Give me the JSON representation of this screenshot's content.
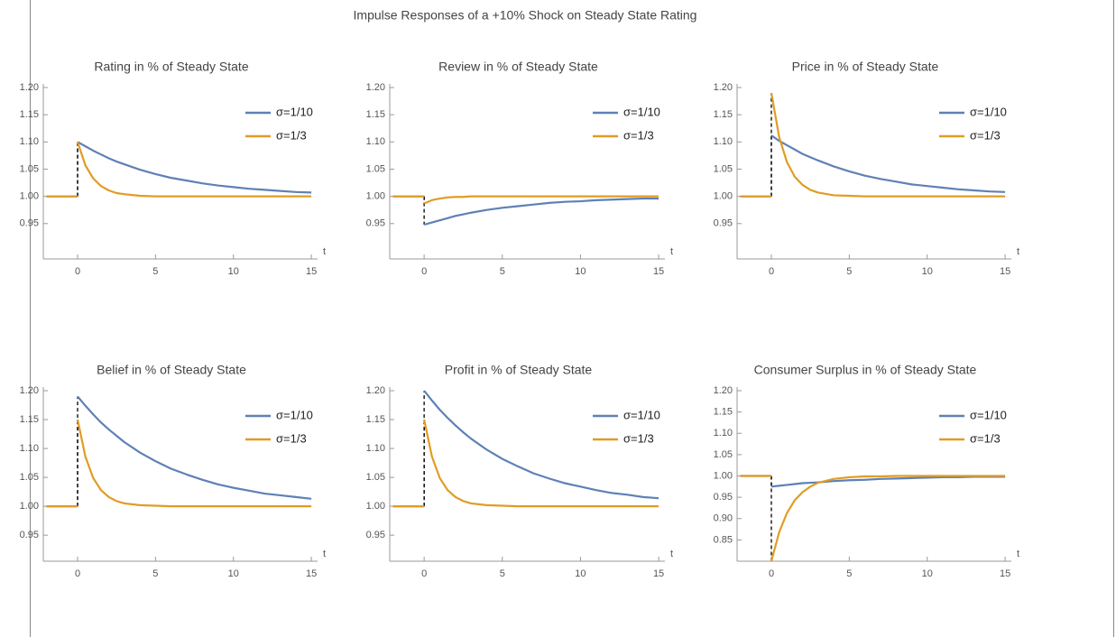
{
  "title": "Impulse Responses of a +10% Shock on Steady State Rating",
  "chart_data": [
    {
      "type": "line",
      "title": "Rating in % of Steady State",
      "x_label": "t",
      "x": [
        -2,
        0,
        0,
        0,
        0.5,
        1,
        1.5,
        2,
        2.5,
        3,
        4,
        5,
        6,
        7,
        8,
        9,
        10,
        11,
        12,
        13,
        14,
        15
      ],
      "series": [
        {
          "name": "σ=1/10",
          "color": "#5e81b5",
          "values": [
            1,
            1,
            null,
            1.1,
            1.092,
            1.084,
            1.077,
            1.07,
            1.064,
            1.059,
            1.049,
            1.041,
            1.034,
            1.029,
            1.024,
            1.02,
            1.017,
            1.014,
            1.012,
            1.01,
            1.008,
            1.007
          ]
        },
        {
          "name": "σ=1/3",
          "color": "#e19c24",
          "values": [
            1,
            1,
            null,
            1.1,
            1.057,
            1.033,
            1.019,
            1.011,
            1.006,
            1.004,
            1.001,
            1,
            1,
            1,
            1,
            1,
            1,
            1,
            1,
            1,
            1,
            1
          ]
        }
      ],
      "xlim": [
        -2.2,
        15.4
      ],
      "xticks": [
        0,
        5,
        10,
        15
      ],
      "ylim": [
        0.885,
        1.2
      ],
      "yticks": [
        0.95,
        {
          "value": 1,
          "label": "1.00"
        },
        1.05,
        {
          "value": 1.1,
          "label": "1.10"
        },
        1.15,
        {
          "value": 1.2,
          "label": "1.20"
        }
      ],
      "legend": "upper right"
    },
    {
      "type": "line",
      "title": "Review in % of Steady State",
      "x_label": "t",
      "x": [
        -2,
        0,
        0,
        0,
        0.5,
        1,
        1.5,
        2,
        2.5,
        3,
        4,
        5,
        6,
        7,
        8,
        9,
        10,
        11,
        12,
        13,
        14,
        15
      ],
      "series": [
        {
          "name": "σ=1/10",
          "color": "#5e81b5",
          "values": [
            1,
            1,
            null,
            0.948,
            0.952,
            0.956,
            0.96,
            0.964,
            0.967,
            0.97,
            0.975,
            0.979,
            0.982,
            0.985,
            0.988,
            0.99,
            0.991,
            0.993,
            0.994,
            0.995,
            0.996,
            0.996
          ]
        },
        {
          "name": "σ=1/3",
          "color": "#e19c24",
          "values": [
            1,
            1,
            null,
            0.987,
            0.993,
            0.996,
            0.998,
            0.999,
            0.999,
            1,
            1,
            1,
            1,
            1,
            1,
            1,
            1,
            1,
            1,
            1,
            1,
            1
          ]
        }
      ],
      "xlim": [
        -2.2,
        15.4
      ],
      "xticks": [
        0,
        5,
        10,
        15
      ],
      "ylim": [
        0.885,
        1.2
      ],
      "yticks": [
        0.95,
        {
          "value": 1,
          "label": "1.00"
        },
        1.05,
        {
          "value": 1.1,
          "label": "1.10"
        },
        1.15,
        {
          "value": 1.2,
          "label": "1.20"
        }
      ],
      "legend": "upper right"
    },
    {
      "type": "line",
      "title": "Price in % of Steady State",
      "x_label": "t",
      "x": [
        -2,
        0,
        0,
        0,
        0.5,
        1,
        1.5,
        2,
        2.5,
        3,
        4,
        5,
        6,
        7,
        8,
        9,
        10,
        11,
        12,
        13,
        14,
        15
      ],
      "series": [
        {
          "name": "σ=1/10",
          "color": "#5e81b5",
          "values": [
            1,
            1,
            null,
            1.112,
            1.102,
            1.094,
            1.086,
            1.078,
            1.072,
            1.066,
            1.055,
            1.046,
            1.038,
            1.032,
            1.027,
            1.022,
            1.019,
            1.016,
            1.013,
            1.011,
            1.009,
            1.008
          ]
        },
        {
          "name": "σ=1/3",
          "color": "#e19c24",
          "values": [
            1,
            1,
            null,
            1.19,
            1.109,
            1.063,
            1.036,
            1.021,
            1.012,
            1.007,
            1.002,
            1.001,
            1,
            1,
            1,
            1,
            1,
            1,
            1,
            1,
            1,
            1
          ]
        }
      ],
      "xlim": [
        -2.2,
        15.4
      ],
      "xticks": [
        0,
        5,
        10,
        15
      ],
      "ylim": [
        0.885,
        1.2
      ],
      "yticks": [
        0.95,
        {
          "value": 1,
          "label": "1.00"
        },
        1.05,
        {
          "value": 1.1,
          "label": "1.10"
        },
        1.15,
        {
          "value": 1.2,
          "label": "1.20"
        }
      ],
      "legend": "upper right"
    },
    {
      "type": "line",
      "title": "Belief in % of Steady State",
      "x_label": "t",
      "x": [
        -2,
        0,
        0,
        0,
        0.5,
        1,
        1.5,
        2,
        2.5,
        3,
        4,
        5,
        6,
        7,
        8,
        9,
        10,
        11,
        12,
        13,
        14,
        15
      ],
      "series": [
        {
          "name": "σ=1/10",
          "color": "#5e81b5",
          "values": [
            1,
            1,
            null,
            1.19,
            1.174,
            1.159,
            1.145,
            1.133,
            1.122,
            1.111,
            1.093,
            1.078,
            1.065,
            1.055,
            1.046,
            1.038,
            1.032,
            1.027,
            1.022,
            1.019,
            1.016,
            1.013
          ]
        },
        {
          "name": "σ=1/3",
          "color": "#e19c24",
          "values": [
            1,
            1,
            null,
            1.15,
            1.086,
            1.049,
            1.028,
            1.016,
            1.009,
            1.005,
            1.002,
            1.001,
            1,
            1,
            1,
            1,
            1,
            1,
            1,
            1,
            1,
            1
          ]
        }
      ],
      "xlim": [
        -2.2,
        15.4
      ],
      "xticks": [
        0,
        5,
        10,
        15
      ],
      "ylim": [
        0.905,
        1.2
      ],
      "yticks": [
        0.95,
        {
          "value": 1,
          "label": "1.00"
        },
        1.05,
        {
          "value": 1.1,
          "label": "1.10"
        },
        1.15,
        {
          "value": 1.2,
          "label": "1.20"
        }
      ],
      "legend": "upper right"
    },
    {
      "type": "line",
      "title": "Profit in % of Steady State",
      "x_label": "t",
      "x": [
        -2,
        0,
        0,
        0,
        0.5,
        1,
        1.5,
        2,
        2.5,
        3,
        4,
        5,
        6,
        7,
        8,
        9,
        10,
        11,
        12,
        13,
        14,
        15
      ],
      "series": [
        {
          "name": "σ=1/10",
          "color": "#5e81b5",
          "values": [
            1,
            1,
            null,
            1.2,
            1.183,
            1.167,
            1.153,
            1.14,
            1.128,
            1.117,
            1.098,
            1.082,
            1.069,
            1.057,
            1.048,
            1.04,
            1.034,
            1.028,
            1.023,
            1.02,
            1.016,
            1.014
          ]
        },
        {
          "name": "σ=1/3",
          "color": "#e19c24",
          "values": [
            1,
            1,
            null,
            1.15,
            1.086,
            1.049,
            1.028,
            1.016,
            1.009,
            1.005,
            1.002,
            1.001,
            1,
            1,
            1,
            1,
            1,
            1,
            1,
            1,
            1,
            1
          ]
        }
      ],
      "xlim": [
        -2.2,
        15.4
      ],
      "xticks": [
        0,
        5,
        10,
        15
      ],
      "ylim": [
        0.905,
        1.2
      ],
      "yticks": [
        0.95,
        {
          "value": 1,
          "label": "1.00"
        },
        1.05,
        {
          "value": 1.1,
          "label": "1.10"
        },
        1.15,
        {
          "value": 1.2,
          "label": "1.20"
        }
      ],
      "legend": "upper right"
    },
    {
      "type": "line",
      "title": "Consumer Surplus in % of Steady State",
      "x_label": "t",
      "x": [
        -2,
        0,
        0,
        0,
        0.5,
        1,
        1.5,
        2,
        2.5,
        3,
        4,
        5,
        6,
        7,
        8,
        9,
        10,
        11,
        12,
        13,
        14,
        15
      ],
      "series": [
        {
          "name": "σ=1/10",
          "color": "#5e81b5",
          "values": [
            1,
            1,
            null,
            0.975,
            0.977,
            0.979,
            0.981,
            0.983,
            0.984,
            0.985,
            0.988,
            0.99,
            0.991,
            0.993,
            0.994,
            0.995,
            0.996,
            0.997,
            0.997,
            0.998,
            0.998,
            0.998
          ]
        },
        {
          "name": "σ=1/3",
          "color": "#e19c24",
          "values": [
            1,
            1,
            null,
            0.8,
            0.868,
            0.913,
            0.943,
            0.962,
            0.975,
            0.984,
            0.993,
            0.997,
            0.999,
            0.999,
            1,
            1,
            1,
            1,
            1,
            1,
            1,
            1
          ]
        }
      ],
      "xlim": [
        -2.2,
        15.4
      ],
      "xticks": [
        0,
        5,
        10,
        15
      ],
      "ylim": [
        0.8,
        1.2
      ],
      "yticks": [
        0.85,
        {
          "value": 0.9,
          "label": "0.90"
        },
        0.95,
        {
          "value": 1,
          "label": "1.00"
        },
        1.05,
        {
          "value": 1.1,
          "label": "1.10"
        },
        1.15,
        {
          "value": 1.2,
          "label": "1.20"
        }
      ],
      "legend": "upper right"
    }
  ]
}
